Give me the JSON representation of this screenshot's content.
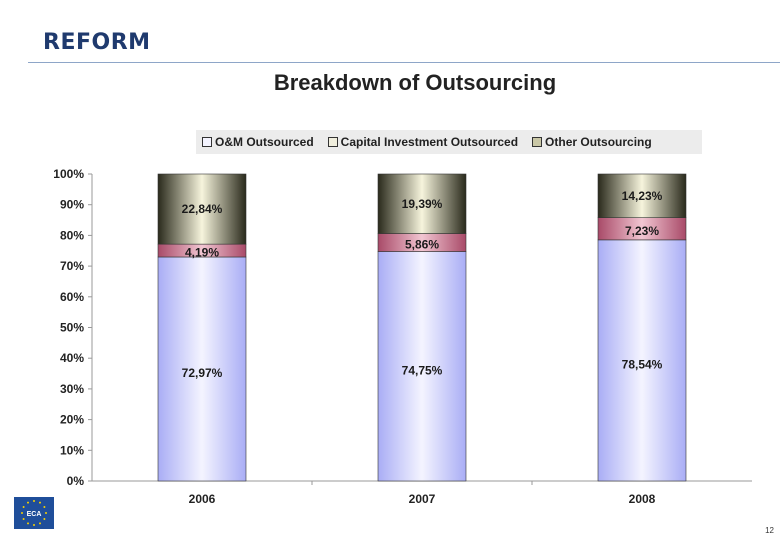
{
  "header": {
    "title": "REFORM"
  },
  "page_number": "12",
  "logo": {
    "name": "eca-eu-stars-logo",
    "text": "ECA",
    "color": "#1f4e9a"
  },
  "chart_data": {
    "type": "bar",
    "stacked": true,
    "title": "Breakdown of Outsourcing",
    "xlabel": "",
    "ylabel": "",
    "ylim": [
      0,
      100
    ],
    "y_ticks": [
      "0%",
      "10%",
      "20%",
      "30%",
      "40%",
      "50%",
      "60%",
      "70%",
      "80%",
      "90%",
      "100%"
    ],
    "categories": [
      "2006",
      "2007",
      "2008"
    ],
    "legend_position": "top",
    "series": [
      {
        "name": "O&M Outsourced",
        "values": [
          72.97,
          74.75,
          78.54
        ],
        "labels": [
          "72,97%",
          "74,75%",
          "78,54%"
        ],
        "color": "#c9ccff"
      },
      {
        "name": "Capital Investment Outsourced",
        "values": [
          4.19,
          5.86,
          7.23
        ],
        "labels": [
          "4,19%",
          "5,86%",
          "7,23%"
        ],
        "color": "#c46a86"
      },
      {
        "name": "Other Outsourcing",
        "values": [
          22.84,
          19.39,
          14.23
        ],
        "labels": [
          "22,84%",
          "19,39%",
          "14,23%"
        ],
        "color": "#e4e2c4"
      }
    ]
  }
}
